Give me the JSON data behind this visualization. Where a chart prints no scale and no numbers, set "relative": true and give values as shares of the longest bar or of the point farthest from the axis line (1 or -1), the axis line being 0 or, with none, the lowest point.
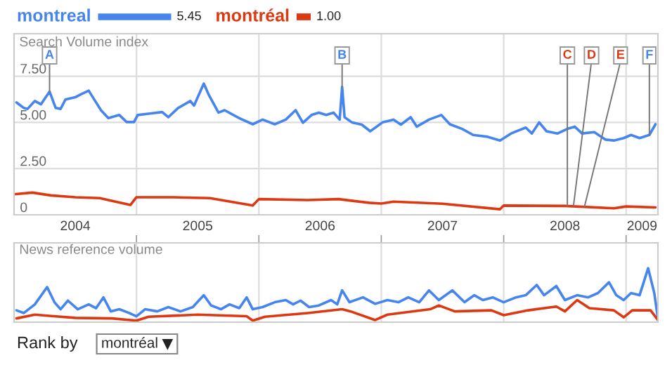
{
  "chart_data": [
    {
      "type": "line",
      "ylabel": "Search Volume index",
      "legend": "top",
      "grid": true,
      "marker": "none",
      "line_style": "solid",
      "tick_labels": "y",
      "xlim": [
        2004,
        2009.26
      ],
      "xticks": [
        {
          "value": 2005,
          "label": null
        },
        {
          "value": 2006,
          "label": null
        },
        {
          "value": 2007,
          "label": null
        },
        {
          "value": 2008,
          "label": null
        },
        {
          "value": 2009,
          "label": null
        }
      ],
      "ylim": [
        0,
        9.8
      ],
      "yticks": [
        0,
        {
          "value": 2.5,
          "label": "2.50"
        },
        {
          "value": 5,
          "label": "5.00"
        },
        {
          "value": 7.5,
          "label": "7.50"
        }
      ],
      "series": [
        {
          "name": "montreal",
          "color": "#4684ee",
          "x": [
            2004.02,
            2004.08,
            2004.11,
            2004.17,
            2004.22,
            2004.29,
            2004.34,
            2004.38,
            2004.42,
            2004.5,
            2004.54,
            2004.61,
            2004.65,
            2004.71,
            2004.77,
            2004.86,
            2004.92,
            2004.98,
            2005.01,
            2005.11,
            2005.21,
            2005.26,
            2005.34,
            2005.44,
            2005.47,
            2005.55,
            2005.59,
            2005.67,
            2005.72,
            2005.84,
            2005.95,
            2006.03,
            2006.13,
            2006.22,
            2006.3,
            2006.36,
            2006.43,
            2006.49,
            2006.55,
            2006.61,
            2006.66,
            2006.68,
            2006.7,
            2006.76,
            2006.84,
            2006.91,
            2007.01,
            2007.1,
            2007.16,
            2007.24,
            2007.29,
            2007.39,
            2007.49,
            2007.56,
            2007.66,
            2007.75,
            2007.87,
            2007.97,
            2008.06,
            2008.18,
            2008.23,
            2008.29,
            2008.35,
            2008.44,
            2008.52,
            2008.58,
            2008.64,
            2008.74,
            2008.83,
            2008.9,
            2008.98,
            2009.04,
            2009.11,
            2009.19,
            2009.24
          ],
          "values": [
            6.08,
            5.78,
            5.73,
            6.16,
            5.98,
            6.67,
            5.78,
            5.73,
            6.24,
            6.36,
            6.5,
            6.72,
            6.29,
            5.66,
            5.23,
            5.4,
            5.02,
            5.02,
            5.4,
            5.48,
            5.56,
            5.28,
            5.78,
            6.16,
            5.91,
            7.1,
            6.5,
            5.53,
            5.66,
            5.23,
            4.9,
            5.15,
            4.9,
            5.15,
            5.66,
            4.98,
            5.4,
            5.53,
            5.4,
            5.53,
            5.15,
            6.92,
            5.28,
            5.0,
            4.88,
            4.52,
            5.0,
            5.15,
            4.88,
            5.28,
            4.77,
            5.15,
            5.4,
            4.9,
            4.65,
            4.32,
            4.22,
            4.02,
            4.4,
            4.72,
            4.4,
            5.0,
            4.52,
            4.4,
            4.65,
            4.77,
            4.4,
            4.47,
            4.07,
            4.02,
            4.15,
            4.32,
            4.15,
            4.32,
            4.9
          ]
        },
        {
          "name": "montréal",
          "color": "#dc3912",
          "x": [
            2004.0,
            2004.15,
            2004.3,
            2004.5,
            2004.7,
            2004.95,
            2005.0,
            2005.3,
            2005.6,
            2005.95,
            2006.0,
            2006.4,
            2006.65,
            2006.9,
            2007.0,
            2007.1,
            2007.5,
            2007.97,
            2008.0,
            2008.5,
            2008.9,
            2009.0,
            2009.24
          ],
          "values": [
            1.11,
            1.2,
            1.05,
            0.95,
            0.9,
            0.53,
            0.95,
            0.95,
            0.9,
            0.5,
            0.85,
            0.8,
            0.85,
            0.65,
            0.61,
            0.71,
            0.6,
            0.3,
            0.5,
            0.48,
            0.35,
            0.45,
            0.4
          ]
        }
      ],
      "annotations": [
        "5.45",
        "1.00",
        {
          "text": "A",
          "x": 2004.29,
          "y": 6.67
        },
        {
          "text": "B",
          "x": 2006.68,
          "y": 6.92
        },
        {
          "text": "C",
          "x": 2008.52,
          "y": 0.48
        },
        {
          "text": "D",
          "x": 2008.57,
          "y": 0.48
        },
        {
          "text": "E",
          "x": 2008.66,
          "y": 0.45
        },
        {
          "text": "F",
          "x": 2009.19,
          "y": 4.32
        }
      ]
    },
    {
      "type": "line",
      "ylabel": "News reference volume",
      "relative": true,
      "grid": "x",
      "marker": "none",
      "line_style": "solid",
      "tick_labels": "x",
      "xlim": [
        2004,
        2009.26
      ],
      "xticks": [
        {
          "value": 2004.5,
          "label": "2004"
        },
        {
          "value": 2005,
          "label": null
        },
        {
          "value": 2005.5,
          "label": "2005"
        },
        {
          "value": 2006,
          "label": null
        },
        {
          "value": 2006.5,
          "label": "2006"
        },
        {
          "value": 2007,
          "label": null
        },
        {
          "value": 2007.5,
          "label": "2007"
        },
        {
          "value": 2008,
          "label": null
        },
        {
          "value": 2008.5,
          "label": "2008"
        },
        {
          "value": 2009,
          "label": null
        },
        {
          "value": 2009.13,
          "label": "2009"
        }
      ],
      "series": [
        {
          "color": "#4684ee",
          "x": [
            2004.02,
            2004.08,
            2004.17,
            2004.27,
            2004.33,
            2004.38,
            2004.44,
            2004.52,
            2004.61,
            2004.67,
            2004.73,
            2004.79,
            2004.86,
            2004.94,
            2005.0,
            2005.07,
            2005.17,
            2005.26,
            2005.36,
            2005.46,
            2005.55,
            2005.61,
            2005.69,
            2005.76,
            2005.84,
            2005.9,
            2005.95,
            2006.03,
            2006.13,
            2006.22,
            2006.28,
            2006.34,
            2006.41,
            2006.49,
            2006.59,
            2006.64,
            2006.68,
            2006.74,
            2006.85,
            2006.95,
            2007.05,
            2007.14,
            2007.22,
            2007.31,
            2007.39,
            2007.47,
            2007.58,
            2007.68,
            2007.76,
            2007.83,
            2007.91,
            2008.0,
            2008.1,
            2008.18,
            2008.27,
            2008.33,
            2008.43,
            2008.5,
            2008.6,
            2008.69,
            2008.77,
            2008.86,
            2008.92,
            2008.98,
            2009.04,
            2009.11,
            2009.18,
            2009.23,
            2009.26
          ],
          "values": [
            0.22,
            0.17,
            0.33,
            0.65,
            0.37,
            0.24,
            0.4,
            0.24,
            0.33,
            0.26,
            0.46,
            0.2,
            0.24,
            0.17,
            0.11,
            0.24,
            0.2,
            0.28,
            0.2,
            0.28,
            0.5,
            0.31,
            0.24,
            0.33,
            0.26,
            0.46,
            0.24,
            0.28,
            0.37,
            0.41,
            0.33,
            0.4,
            0.28,
            0.31,
            0.41,
            0.33,
            0.59,
            0.37,
            0.46,
            0.34,
            0.41,
            0.37,
            0.46,
            0.37,
            0.59,
            0.41,
            0.59,
            0.37,
            0.5,
            0.41,
            0.46,
            0.37,
            0.46,
            0.5,
            0.69,
            0.5,
            0.67,
            0.41,
            0.5,
            0.46,
            0.54,
            0.74,
            0.5,
            0.41,
            0.54,
            0.5,
            1.0,
            0.54,
            0.07
          ]
        },
        {
          "color": "#dc3912",
          "x": [
            2004.02,
            2004.17,
            2004.27,
            2004.5,
            2004.8,
            2005.0,
            2005.1,
            2005.5,
            2005.9,
            2005.95,
            2006.05,
            2006.4,
            2006.68,
            2006.75,
            2006.95,
            2007.05,
            2007.4,
            2007.47,
            2007.6,
            2007.9,
            2008.0,
            2008.2,
            2008.43,
            2008.5,
            2008.6,
            2008.7,
            2008.9,
            2008.98,
            2009.05,
            2009.2,
            2009.26
          ],
          "values": [
            0.07,
            0.14,
            0.12,
            0.08,
            0.07,
            0.03,
            0.1,
            0.14,
            0.11,
            0.03,
            0.1,
            0.17,
            0.24,
            0.2,
            0.04,
            0.14,
            0.24,
            0.31,
            0.2,
            0.22,
            0.13,
            0.22,
            0.29,
            0.2,
            0.41,
            0.26,
            0.22,
            0.09,
            0.22,
            0.22,
            0.04
          ]
        }
      ],
      "annotations": [
        "Rank by",
        "montréal"
      ]
    }
  ]
}
